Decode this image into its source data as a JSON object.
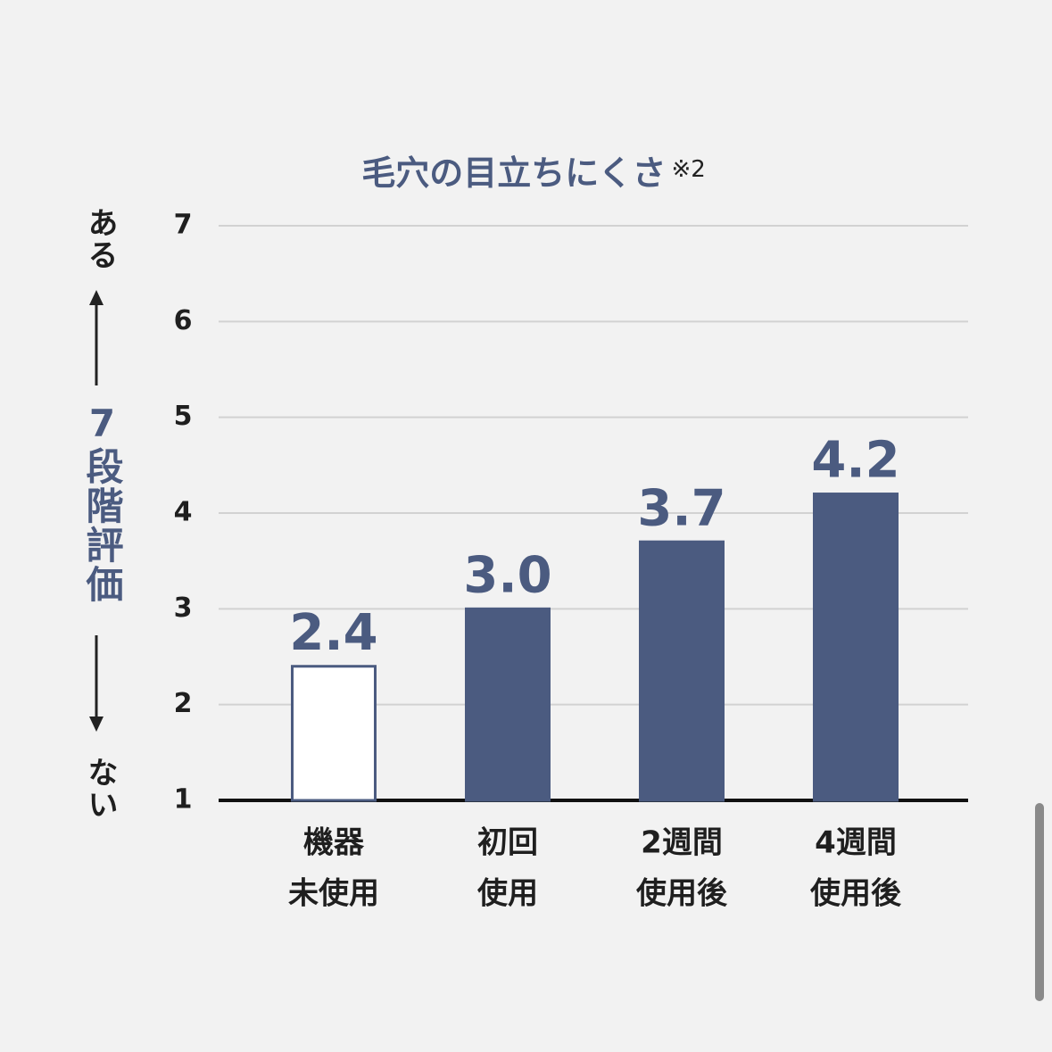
{
  "chart_data": {
    "type": "bar",
    "title": "毛穴の目立ちにくさ",
    "title_note": "※2",
    "y_label": "7段階評価",
    "y_top_label": "ある",
    "y_bottom_label": "ない",
    "categories": [
      [
        "機器",
        "未使用"
      ],
      [
        "初回",
        "使用"
      ],
      [
        "2週間",
        "使用後"
      ],
      [
        "4週間",
        "使用後"
      ]
    ],
    "values": [
      2.4,
      3.0,
      3.7,
      4.2
    ],
    "value_labels": [
      "2.4",
      "3.0",
      "3.7",
      "4.2"
    ],
    "color": "#4b5b80",
    "fills": [
      "#ffffff",
      "#4b5b80",
      "#4b5b80",
      "#4b5b80"
    ],
    "ylim": [
      1,
      7
    ],
    "yticks": [
      1,
      2,
      3,
      4,
      5,
      6,
      7
    ],
    "grid": true
  }
}
